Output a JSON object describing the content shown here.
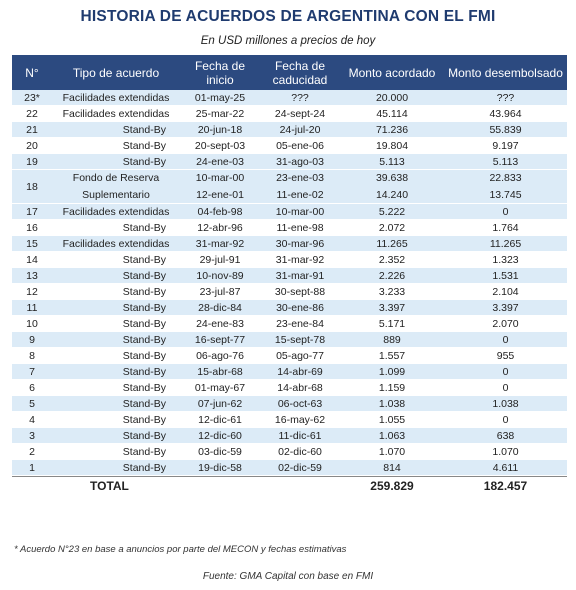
{
  "title": "HISTORIA DE ACUERDOS DE ARGENTINA CON EL FMI",
  "subtitle": "En USD millones a precios de hoy",
  "headers": {
    "num": "N°",
    "tipo": "Tipo de acuerdo",
    "inicio": "Fecha de inicio",
    "caducidad": "Fecha de caducidad",
    "acordado": "Monto acordado",
    "desembolsado": "Monto desembolsado"
  },
  "rows": [
    {
      "num": "23*",
      "tipo": "Facilidades extendidas",
      "inicio": "01-may-25",
      "caducidad": "???",
      "acordado": "20.000",
      "desembolsado": "???"
    },
    {
      "num": "22",
      "tipo": "Facilidades extendidas",
      "inicio": "25-mar-22",
      "caducidad": "24-sept-24",
      "acordado": "45.114",
      "desembolsado": "43.964"
    },
    {
      "num": "21",
      "tipo": "Stand-By",
      "inicio": "20-jun-18",
      "caducidad": "24-jul-20",
      "acordado": "71.236",
      "desembolsado": "55.839"
    },
    {
      "num": "20",
      "tipo": "Stand-By",
      "inicio": "20-sept-03",
      "caducidad": "05-ene-06",
      "acordado": "19.804",
      "desembolsado": "9.197"
    },
    {
      "num": "19",
      "tipo": "Stand-By",
      "inicio": "24-ene-03",
      "caducidad": "31-ago-03",
      "acordado": "5.113",
      "desembolsado": "5.113"
    }
  ],
  "row18": {
    "num": "18",
    "tipo_a": "Fondo de Reserva",
    "tipo_b": "Suplementario",
    "inicio_a": "10-mar-00",
    "inicio_b": "12-ene-01",
    "caducidad_a": "23-ene-03",
    "caducidad_b": "11-ene-02",
    "acordado_a": "39.638",
    "acordado_b": "14.240",
    "desembolsado_a": "22.833",
    "desembolsado_b": "13.745"
  },
  "rows2": [
    {
      "num": "17",
      "tipo": "Facilidades extendidas",
      "inicio": "04-feb-98",
      "caducidad": "10-mar-00",
      "acordado": "5.222",
      "desembolsado": "0"
    },
    {
      "num": "16",
      "tipo": "Stand-By",
      "inicio": "12-abr-96",
      "caducidad": "11-ene-98",
      "acordado": "2.072",
      "desembolsado": "1.764"
    },
    {
      "num": "15",
      "tipo": "Facilidades extendidas",
      "inicio": "31-mar-92",
      "caducidad": "30-mar-96",
      "acordado": "11.265",
      "desembolsado": "11.265"
    },
    {
      "num": "14",
      "tipo": "Stand-By",
      "inicio": "29-jul-91",
      "caducidad": "31-mar-92",
      "acordado": "2.352",
      "desembolsado": "1.323"
    },
    {
      "num": "13",
      "tipo": "Stand-By",
      "inicio": "10-nov-89",
      "caducidad": "31-mar-91",
      "acordado": "2.226",
      "desembolsado": "1.531"
    },
    {
      "num": "12",
      "tipo": "Stand-By",
      "inicio": "23-jul-87",
      "caducidad": "30-sept-88",
      "acordado": "3.233",
      "desembolsado": "2.104"
    },
    {
      "num": "11",
      "tipo": "Stand-By",
      "inicio": "28-dic-84",
      "caducidad": "30-ene-86",
      "acordado": "3.397",
      "desembolsado": "3.397"
    },
    {
      "num": "10",
      "tipo": "Stand-By",
      "inicio": "24-ene-83",
      "caducidad": "23-ene-84",
      "acordado": "5.171",
      "desembolsado": "2.070"
    },
    {
      "num": "9",
      "tipo": "Stand-By",
      "inicio": "16-sept-77",
      "caducidad": "15-sept-78",
      "acordado": "889",
      "desembolsado": "0"
    },
    {
      "num": "8",
      "tipo": "Stand-By",
      "inicio": "06-ago-76",
      "caducidad": "05-ago-77",
      "acordado": "1.557",
      "desembolsado": "955"
    },
    {
      "num": "7",
      "tipo": "Stand-By",
      "inicio": "15-abr-68",
      "caducidad": "14-abr-69",
      "acordado": "1.099",
      "desembolsado": "0"
    },
    {
      "num": "6",
      "tipo": "Stand-By",
      "inicio": "01-may-67",
      "caducidad": "14-abr-68",
      "acordado": "1.159",
      "desembolsado": "0"
    },
    {
      "num": "5",
      "tipo": "Stand-By",
      "inicio": "07-jun-62",
      "caducidad": "06-oct-63",
      "acordado": "1.038",
      "desembolsado": "1.038"
    },
    {
      "num": "4",
      "tipo": "Stand-By",
      "inicio": "12-dic-61",
      "caducidad": "16-may-62",
      "acordado": "1.055",
      "desembolsado": "0"
    },
    {
      "num": "3",
      "tipo": "Stand-By",
      "inicio": "12-dic-60",
      "caducidad": "11-dic-61",
      "acordado": "1.063",
      "desembolsado": "638"
    },
    {
      "num": "2",
      "tipo": "Stand-By",
      "inicio": "03-dic-59",
      "caducidad": "02-dic-60",
      "acordado": "1.070",
      "desembolsado": "1.070"
    },
    {
      "num": "1",
      "tipo": "Stand-By",
      "inicio": "19-dic-58",
      "caducidad": "02-dic-59",
      "acordado": "814",
      "desembolsado": "4.611"
    }
  ],
  "total": {
    "label": "TOTAL",
    "acordado": "259.829",
    "desembolsado": "182.457"
  },
  "note": "* Acuerdo N°23 en base a anuncios por parte del MECON y fechas estimativas",
  "source": "Fuente: GMA Capital con base en FMI",
  "colors": {
    "header_bg": "#2c4a80",
    "title": "#1f3b6f",
    "stripe": "#dcebf7"
  }
}
